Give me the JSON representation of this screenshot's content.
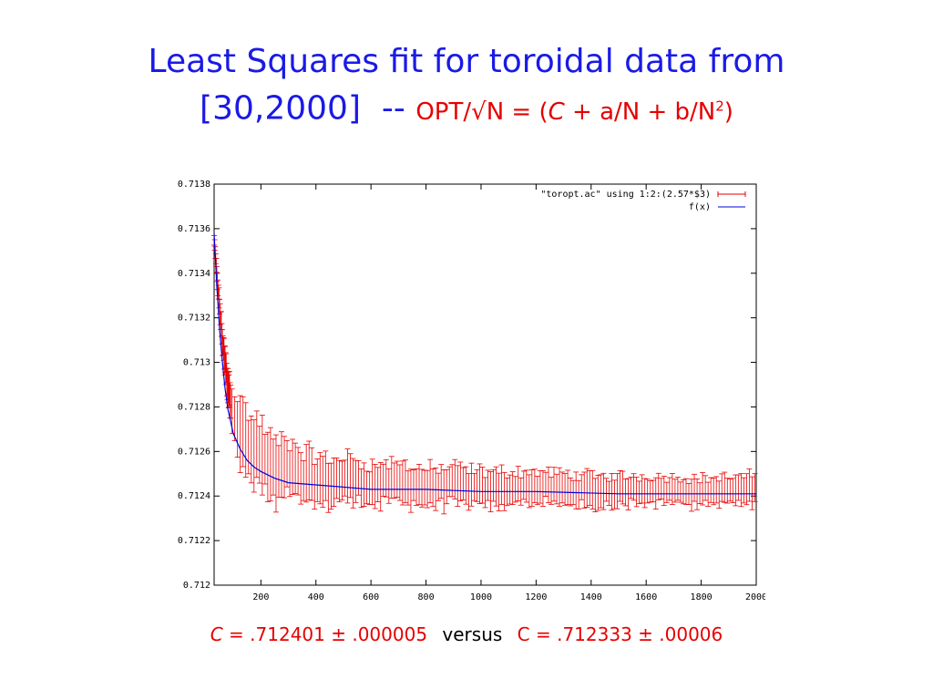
{
  "title": {
    "line1": "Least Squares fit for toroidal data from",
    "line2_prefix": "[30,2000]",
    "dash": "--",
    "formula_a": "OPT/√N = (",
    "formula_c": "C",
    "formula_b": " + a/N + b/N",
    "formula_exp": "2",
    "formula_close": ")"
  },
  "caption": {
    "c_label": "C",
    "c_value": " = .712401 ± .000005",
    "versus": "versus",
    "c2_value": "C = .712333 ± .00006"
  },
  "chart_data": {
    "type": "line",
    "xlim": [
      30,
      2000
    ],
    "ylim": [
      0.712,
      0.7138
    ],
    "xticks": [
      200,
      400,
      600,
      800,
      1000,
      1200,
      1400,
      1600,
      1800,
      2000
    ],
    "yticks": [
      0.712,
      0.7122,
      0.7124,
      0.7126,
      0.7128,
      0.713,
      0.7132,
      0.7134,
      0.7136,
      0.7138
    ],
    "ytick_labels": [
      "0.712",
      "0.7122",
      "0.7124",
      "0.7126",
      "0.7128",
      "0.713",
      "0.7132",
      "0.7134",
      "0.7136",
      "0.7138"
    ],
    "legend": "top-right",
    "series": [
      {
        "name": "\"toropt.ac\" using 1:2:(2.57*$3)",
        "style": "errorbars",
        "color": "#e60000",
        "x": [
          30,
          40,
          50,
          60,
          80,
          100,
          125,
          150,
          175,
          200,
          250,
          300,
          350,
          400,
          450,
          500,
          600,
          700,
          800,
          900,
          1000,
          1200,
          1400,
          1600,
          1800,
          2000
        ],
        "y": [
          0.71355,
          0.7134,
          0.71325,
          0.7131,
          0.7129,
          0.71278,
          0.71268,
          0.71262,
          0.7126,
          0.71258,
          0.7125,
          0.71252,
          0.71248,
          0.71247,
          0.71246,
          0.71248,
          0.71245,
          0.71246,
          0.71244,
          0.71245,
          0.71243,
          0.71244,
          0.71242,
          0.71243,
          0.71242,
          0.71243
        ],
        "err": [
          2e-05,
          3e-05,
          4e-05,
          5e-05,
          7e-05,
          0.0001,
          0.00015,
          0.00016,
          0.00015,
          0.00015,
          0.00014,
          0.00013,
          0.00012,
          0.00011,
          0.0001,
          0.0001,
          9e-05,
          9e-05,
          8e-05,
          8e-05,
          8e-05,
          7e-05,
          7e-05,
          6e-05,
          6e-05,
          6e-05
        ]
      },
      {
        "name": "f(x)",
        "style": "line",
        "color": "#0000dd",
        "x": [
          30,
          40,
          50,
          60,
          70,
          80,
          100,
          125,
          150,
          175,
          200,
          250,
          300,
          400,
          500,
          600,
          800,
          1000,
          1200,
          1500,
          1800,
          2000
        ],
        "y": [
          0.71358,
          0.71334,
          0.71315,
          0.713,
          0.71288,
          0.71279,
          0.71268,
          0.71261,
          0.71256,
          0.71253,
          0.71251,
          0.71248,
          0.71246,
          0.71245,
          0.71244,
          0.71243,
          0.71243,
          0.71242,
          0.71242,
          0.71241,
          0.71241,
          0.71241
        ]
      }
    ]
  }
}
